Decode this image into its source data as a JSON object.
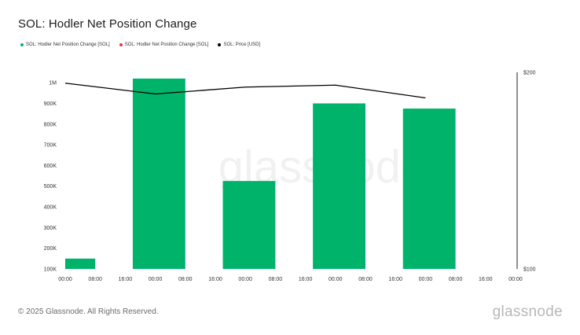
{
  "title": "SOL: Hodler Net Position Change",
  "legend": [
    {
      "label": "SOL: Hodler Net Position Change [SOL]",
      "color": "#00b36b"
    },
    {
      "label": "SOL: Hodler Net Position Change [SOL]",
      "color": "#e8344e"
    },
    {
      "label": "SOL: Price [USD]",
      "color": "#000000"
    }
  ],
  "watermark": "glassnode",
  "footer": {
    "copyright": "© 2025 Glassnode. All Rights Reserved.",
    "logo": "glassnode"
  },
  "chart_data": {
    "type": "bar",
    "categories": [
      "00:00",
      "08:00",
      "16:00",
      "00:00",
      "08:00",
      "16:00",
      "00:00",
      "08:00",
      "16:00",
      "00:00",
      "08:00",
      "16:00",
      "00:00",
      "08:00",
      "16:00",
      "00:00"
    ],
    "series": [
      {
        "name": "SOL: Hodler Net Position Change [SOL]",
        "color": "#00b36b",
        "bars": [
          {
            "start": 0.0,
            "end": 1.0,
            "value": 150000
          },
          {
            "start": 2.25,
            "end": 4.0,
            "value": 1020000
          },
          {
            "start": 5.25,
            "end": 7.0,
            "value": 525000
          },
          {
            "start": 8.25,
            "end": 10.0,
            "value": 900000
          },
          {
            "start": 11.25,
            "end": 13.0,
            "value": 875000
          }
        ]
      },
      {
        "name": "SOL: Price [USD]",
        "color": "#000000",
        "type": "line",
        "axis": "right",
        "points": [
          {
            "x": 0,
            "y": 194.5
          },
          {
            "x": 3,
            "y": 189
          },
          {
            "x": 6,
            "y": 192.5
          },
          {
            "x": 9,
            "y": 193.5
          },
          {
            "x": 12,
            "y": 187
          }
        ]
      }
    ],
    "y_left": {
      "ticks": [
        100000,
        200000,
        300000,
        400000,
        500000,
        600000,
        700000,
        800000,
        900000,
        1000000
      ],
      "tick_labels": [
        "100K",
        "200K",
        "300K",
        "400K",
        "500K",
        "600K",
        "700K",
        "800K",
        "900K",
        "1M"
      ],
      "range": [
        100000,
        1050000
      ]
    },
    "y_right": {
      "ticks": [
        100,
        200
      ],
      "tick_labels": [
        "$100",
        "$200"
      ],
      "range": [
        100,
        200
      ]
    },
    "grid": false,
    "legend_position": "top-left"
  }
}
